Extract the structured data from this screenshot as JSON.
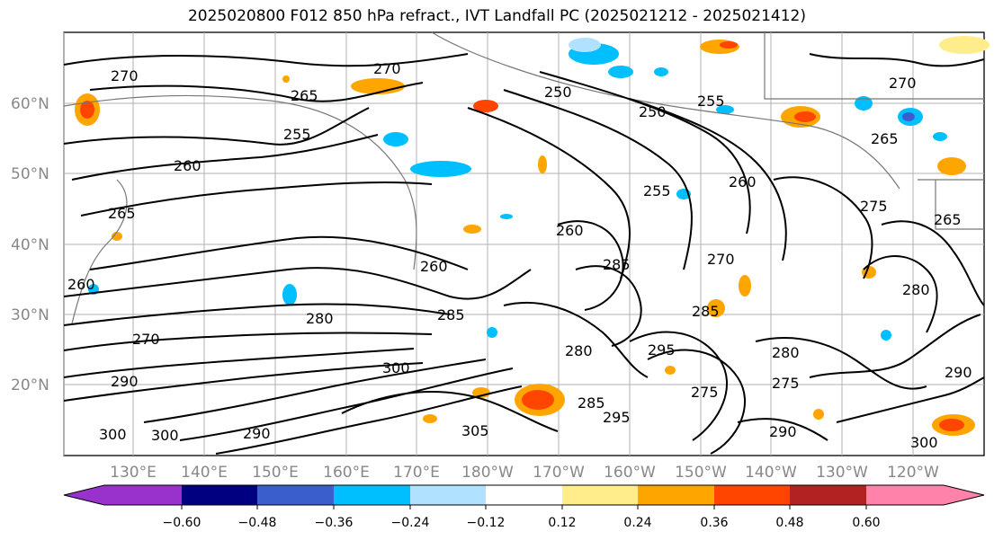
{
  "title": "2025020800 F012 850 hPa refract., IVT Landfall PC (2025021212 - 2025021412)",
  "map": {
    "lat_labels": [
      "60°N",
      "50°N",
      "40°N",
      "30°N",
      "20°N"
    ],
    "lon_labels": [
      "130°E",
      "140°E",
      "150°E",
      "160°E",
      "170°E",
      "180°W",
      "170°W",
      "160°W",
      "150°W",
      "140°W",
      "130°W",
      "120°W"
    ],
    "contour_labels": [
      "270",
      "270",
      "265",
      "255",
      "260",
      "265",
      "260",
      "280",
      "270",
      "290",
      "260",
      "285",
      "280",
      "285",
      "300",
      "300",
      "250",
      "255",
      "250",
      "260",
      "255",
      "270",
      "275",
      "285",
      "280",
      "275",
      "265",
      "265",
      "295",
      "290",
      "300",
      "305",
      "270",
      "275",
      "280",
      "285",
      "290",
      "295",
      "260",
      "300",
      "290"
    ]
  },
  "colorbar": {
    "ticks": [
      "−0.60",
      "−0.48",
      "−0.36",
      "−0.24",
      "−0.12",
      "0.12",
      "0.24",
      "0.36",
      "0.48",
      "0.60"
    ],
    "colors": [
      "#9932cc",
      "#000080",
      "#3a5fcd",
      "#00bfff",
      "#b0e2ff",
      "#ffffff",
      "#ffec8b",
      "#ffa500",
      "#ff4500",
      "#b22222",
      "#ff82ab"
    ]
  }
}
